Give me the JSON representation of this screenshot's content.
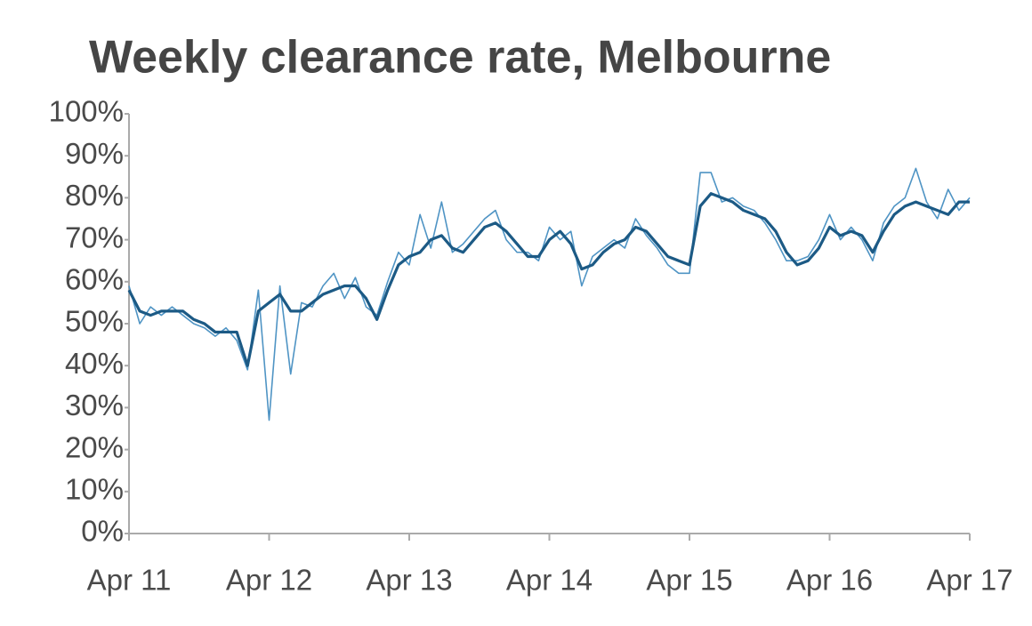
{
  "chart_data": {
    "type": "line",
    "title": "Weekly clearance rate, Melbourne",
    "x": [
      0,
      4,
      8,
      12,
      16,
      20,
      24,
      28,
      32,
      36,
      40,
      44,
      48,
      52,
      56,
      60,
      64,
      68,
      72,
      76,
      80,
      84,
      88,
      92,
      96,
      100,
      104,
      108,
      112,
      116,
      120,
      124,
      128,
      132,
      136,
      140,
      144,
      148,
      152,
      156,
      160,
      164,
      168,
      172,
      176,
      180,
      184,
      188,
      192,
      196,
      200,
      204,
      208,
      212,
      216,
      220,
      224,
      228,
      232,
      236,
      240,
      244,
      248,
      252,
      256,
      260,
      264,
      268,
      272,
      276,
      280,
      284,
      288,
      292,
      296,
      300,
      304,
      308,
      312
    ],
    "series": [
      {
        "color": "#4f94c4",
        "values": [
          59,
          50,
          54,
          52,
          54,
          52,
          50,
          49,
          47,
          49,
          46,
          39,
          58,
          27,
          59,
          38,
          55,
          54,
          59,
          62,
          56,
          61,
          54,
          52,
          60,
          67,
          64,
          76,
          68,
          79,
          67,
          69,
          72,
          75,
          77,
          70,
          67,
          67,
          65,
          73,
          70,
          72,
          59,
          66,
          68,
          70,
          68,
          75,
          71,
          68,
          64,
          62,
          62,
          86,
          86,
          79,
          80,
          78,
          77,
          74,
          70,
          65,
          65,
          66,
          70,
          76,
          70,
          73,
          70,
          65,
          74,
          78,
          80,
          87,
          79,
          75,
          82,
          77,
          80
        ]
      },
      {
        "color": "#1c5a85",
        "values": [
          58,
          53,
          52,
          53,
          53,
          53,
          51,
          50,
          48,
          48,
          48,
          40,
          53,
          55,
          57,
          53,
          53,
          55,
          57,
          58,
          59,
          59,
          56,
          51,
          58,
          64,
          66,
          67,
          70,
          71,
          68,
          67,
          70,
          73,
          74,
          72,
          69,
          66,
          66,
          70,
          72,
          69,
          63,
          64,
          67,
          69,
          70,
          73,
          72,
          69,
          66,
          65,
          64,
          78,
          81,
          80,
          79,
          77,
          76,
          75,
          72,
          67,
          64,
          65,
          68,
          73,
          71,
          72,
          71,
          67,
          72,
          76,
          78,
          79,
          78,
          77,
          76,
          79,
          79
        ]
      }
    ],
    "xlim": [
      0,
      312
    ],
    "xticks": [
      {
        "value": 0,
        "label": "Apr 11"
      },
      {
        "value": 52,
        "label": "Apr 12"
      },
      {
        "value": 104,
        "label": "Apr 13"
      },
      {
        "value": 156,
        "label": "Apr 14"
      },
      {
        "value": 208,
        "label": "Apr 15"
      },
      {
        "value": 260,
        "label": "Apr 16"
      },
      {
        "value": 312,
        "label": "Apr 17"
      }
    ],
    "ylim": [
      0,
      100
    ],
    "yticks": [
      {
        "value": 0,
        "label": "0%"
      },
      {
        "value": 10,
        "label": "10%"
      },
      {
        "value": 20,
        "label": "20%"
      },
      {
        "value": 30,
        "label": "30%"
      },
      {
        "value": 40,
        "label": "40%"
      },
      {
        "value": 50,
        "label": "50%"
      },
      {
        "value": 60,
        "label": "60%"
      },
      {
        "value": 70,
        "label": "70%"
      },
      {
        "value": 80,
        "label": "80%"
      },
      {
        "value": 90,
        "label": "90%"
      },
      {
        "value": 100,
        "label": "100%"
      }
    ]
  }
}
